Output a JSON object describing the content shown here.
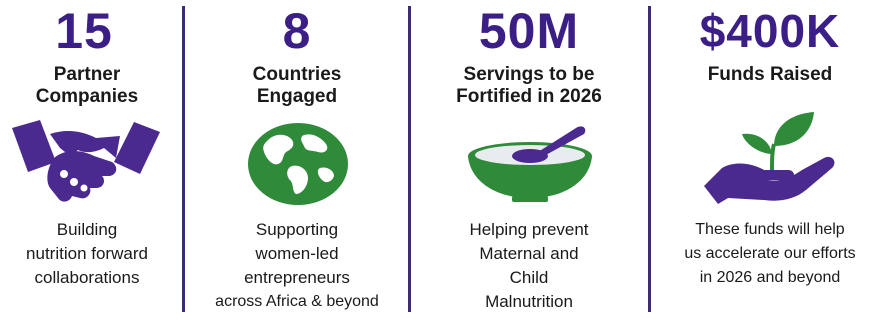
{
  "colors": {
    "purple": "#3b1f86",
    "icon_purple": "#4b2a8f",
    "green": "#2f8a3a",
    "divider": "#3a2a78",
    "text": "#1a1a1a"
  },
  "panels": [
    {
      "stat": "15",
      "label_lines": [
        "Partner",
        "Companies"
      ],
      "icon": "handshake-icon",
      "desc_lines": [
        "Building",
        "nutrition forward",
        "collaborations"
      ]
    },
    {
      "stat": "8",
      "label_lines": [
        "Countries",
        "Engaged"
      ],
      "icon": "globe-icon",
      "desc_lines": [
        "Supporting",
        "women-led",
        "entrepreneurs",
        "across Africa & beyond"
      ]
    },
    {
      "stat": "50M",
      "label_lines": [
        "Servings to be",
        "Fortified in 2026"
      ],
      "icon": "bowl-icon",
      "desc_lines": [
        "Helping prevent",
        "Maternal and",
        "Child",
        "Malnutrition"
      ]
    },
    {
      "stat": "$400K",
      "label_lines": [
        "Funds Raised"
      ],
      "icon": "hand-with-sprout-icon",
      "desc_lines": [
        "These funds will help",
        "us accelerate our efforts",
        "in 2026 and beyond"
      ]
    }
  ]
}
